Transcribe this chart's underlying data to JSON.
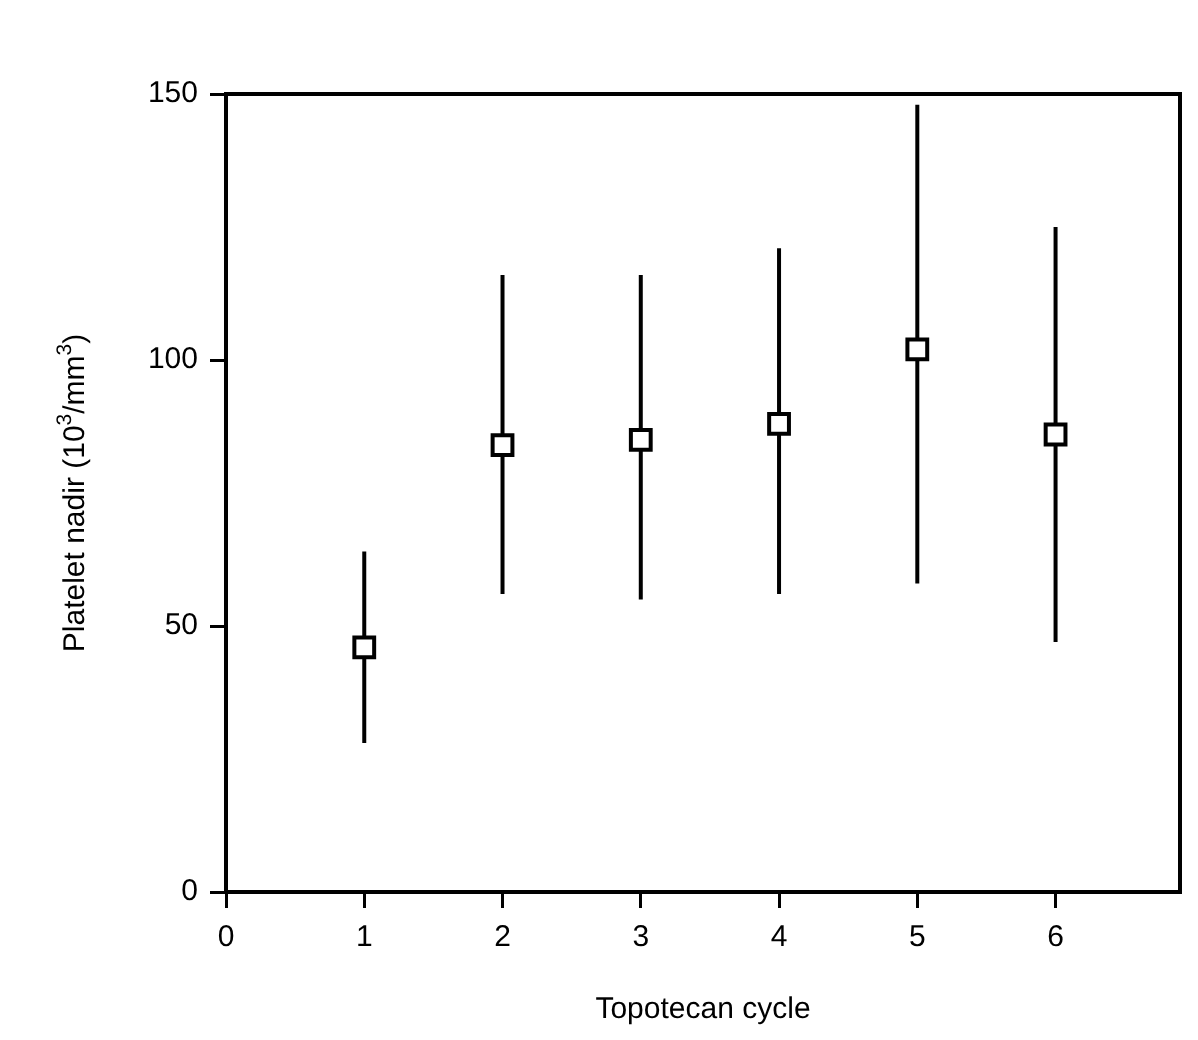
{
  "chart_data": {
    "type": "scatter",
    "xlabel": "Topotecan cycle",
    "ylabel": "Platelet nadir (10$^{3}$/mm$^{3}$)",
    "x": [
      1,
      2,
      3,
      4,
      5,
      6
    ],
    "series": [
      {
        "color": "#000000",
        "values": [
          46,
          84,
          85,
          88,
          102,
          86
        ],
        "errors": [
          [
            28,
            64
          ],
          [
            56,
            116
          ],
          [
            55,
            116
          ],
          [
            56,
            121
          ],
          [
            58,
            148
          ],
          [
            47,
            125
          ]
        ]
      }
    ],
    "xlim": [
      0,
      6.9
    ],
    "xticks": [
      0,
      1,
      2,
      3,
      4,
      5,
      6
    ],
    "ylim": [
      0,
      150
    ],
    "yticks": [
      0,
      50,
      100,
      150
    ],
    "marker": "square",
    "legend": false
  }
}
